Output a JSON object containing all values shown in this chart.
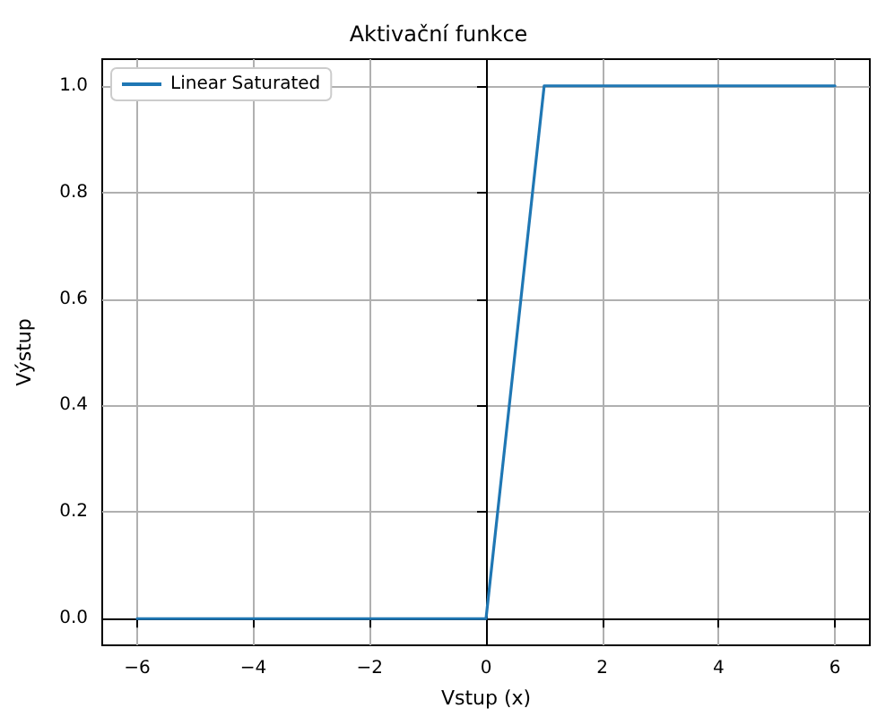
{
  "chart_data": {
    "type": "line",
    "title": "Aktivační funkce",
    "xlabel": "Vstup (x)",
    "ylabel": "Výstup",
    "series": [
      {
        "name": "Linear Saturated",
        "color": "#1f77b4",
        "x": [
          -6,
          0,
          1,
          6
        ],
        "values": [
          0,
          0,
          1,
          1
        ]
      }
    ],
    "xlim": [
      -6.6,
      6.6
    ],
    "ylim": [
      -0.05,
      1.05
    ],
    "xticks": [
      -6,
      -4,
      -2,
      0,
      2,
      4,
      6
    ],
    "yticks": [
      {
        "value": 0,
        "label": "0.0"
      },
      {
        "value": 0.2,
        "label": "0.2"
      },
      {
        "value": 0.4,
        "label": "0.4"
      },
      {
        "value": 0.6,
        "label": "0.6"
      },
      {
        "value": 0.8,
        "label": "0.8"
      },
      {
        "value": 1,
        "label": "1.0"
      }
    ],
    "grid": true,
    "legend": "top left",
    "marker": "none",
    "line_style": "solid"
  }
}
